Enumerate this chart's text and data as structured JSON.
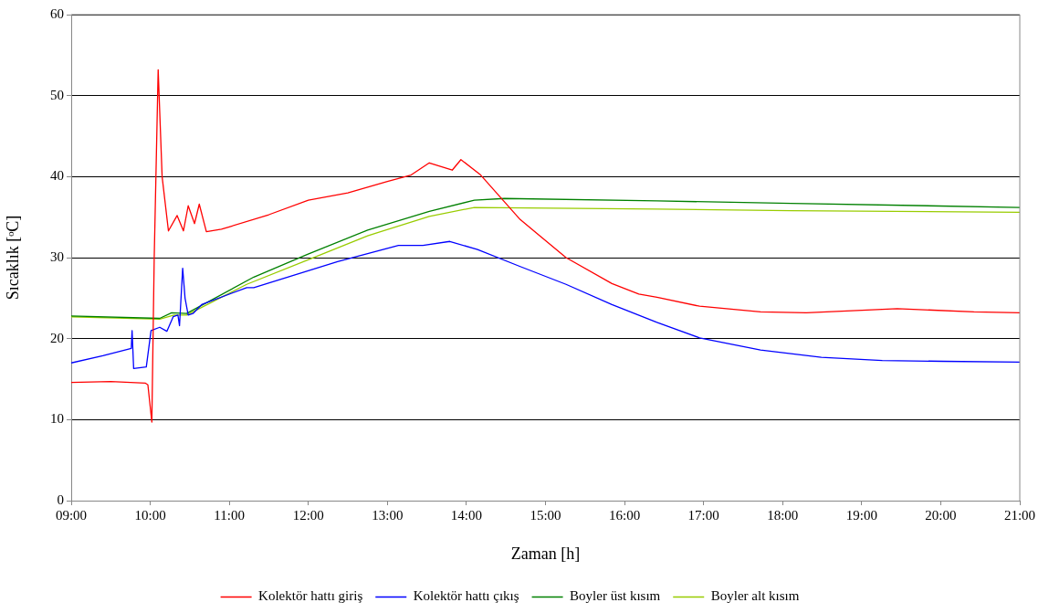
{
  "chart_data": {
    "type": "line",
    "xlabel": "Zaman [h]",
    "ylabel": "Sıcaklık [ᵒC]",
    "xlim": [
      9,
      21
    ],
    "xticks": [
      {
        "value": 9,
        "label": "09:00"
      },
      {
        "value": 10,
        "label": "10:00"
      },
      {
        "value": 11,
        "label": "11:00"
      },
      {
        "value": 12,
        "label": "12:00"
      },
      {
        "value": 13,
        "label": "13:00"
      },
      {
        "value": 14,
        "label": "14:00"
      },
      {
        "value": 15,
        "label": "15:00"
      },
      {
        "value": 16,
        "label": "16:00"
      },
      {
        "value": 17,
        "label": "17:00"
      },
      {
        "value": 18,
        "label": "18:00"
      },
      {
        "value": 19,
        "label": "19:00"
      },
      {
        "value": 20,
        "label": "20:00"
      },
      {
        "value": 21,
        "label": "21:00"
      }
    ],
    "ylim": [
      0,
      60
    ],
    "yticks": [
      0,
      10,
      20,
      30,
      40,
      50,
      60
    ],
    "grid": "y",
    "legend": "bottom",
    "marker": "none",
    "line_style": "solid",
    "series": [
      {
        "name": "Kolektör hattı giriş",
        "color": "#ff0000",
        "x": [
          9,
          9.5,
          9.94,
          9.97,
          10.02,
          10.05,
          10.1,
          10.15,
          10.23,
          10.34,
          10.42,
          10.48,
          10.56,
          10.62,
          10.71,
          10.9,
          11,
          11.5,
          12,
          12.5,
          13,
          13.3,
          13.53,
          13.82,
          13.93,
          14.18,
          14.68,
          15.26,
          15.84,
          16.18,
          16.41,
          16.95,
          17.72,
          18.3,
          19.45,
          20.42,
          21
        ],
        "values": [
          14.6,
          14.7,
          14.5,
          14.3,
          9.7,
          30,
          53.2,
          40,
          33.3,
          35.2,
          33.3,
          36.4,
          34.2,
          36.6,
          33.2,
          33.5,
          33.8,
          35.3,
          37.1,
          38,
          39.4,
          40.2,
          41.7,
          40.8,
          42.1,
          40.2,
          34.7,
          30,
          26.8,
          25.5,
          25.1,
          24,
          23.3,
          23.2,
          23.7,
          23.3,
          23.2
        ]
      },
      {
        "name": "Kolektör hattı çıkış",
        "color": "#0000ff",
        "x": [
          9,
          9.4,
          9.76,
          9.77,
          9.79,
          9.95,
          10.01,
          10.12,
          10.21,
          10.29,
          10.35,
          10.37,
          10.41,
          10.44,
          10.48,
          10.54,
          10.65,
          11.22,
          11.31,
          12.37,
          13.14,
          13.45,
          13.79,
          14.14,
          14.68,
          15.26,
          15.84,
          16.41,
          16.95,
          17.72,
          18.49,
          19.26,
          20.03,
          21
        ],
        "values": [
          17,
          17.9,
          18.8,
          21,
          16.3,
          16.5,
          21,
          21.4,
          20.9,
          22.7,
          22.9,
          21.6,
          28.7,
          25,
          22.9,
          23.1,
          24.2,
          26.3,
          26.3,
          29.5,
          31.5,
          31.5,
          32,
          31,
          28.9,
          26.7,
          24.2,
          22,
          20.1,
          18.6,
          17.7,
          17.3,
          17.2,
          17.1
        ]
      },
      {
        "name": "Boyler üst kısım",
        "color": "#008000",
        "x": [
          9,
          10.12,
          10.27,
          10.46,
          11.31,
          11.99,
          12.75,
          13.53,
          14.1,
          14.48,
          16.41,
          18.11,
          21
        ],
        "values": [
          22.8,
          22.5,
          23.2,
          23.1,
          27.6,
          30.4,
          33.4,
          35.7,
          37.1,
          37.3,
          37,
          36.7,
          36.2
        ]
      },
      {
        "name": "Boyler alt kısım",
        "color": "#99cc00",
        "x": [
          9,
          10.12,
          10.3,
          10.46,
          11.22,
          11.99,
          12.75,
          13.53,
          14.1,
          16.41,
          18.11,
          21
        ],
        "values": [
          22.7,
          22.4,
          22.9,
          22.9,
          26.7,
          29.7,
          32.7,
          35.1,
          36.2,
          36,
          35.8,
          35.6
        ]
      }
    ]
  }
}
